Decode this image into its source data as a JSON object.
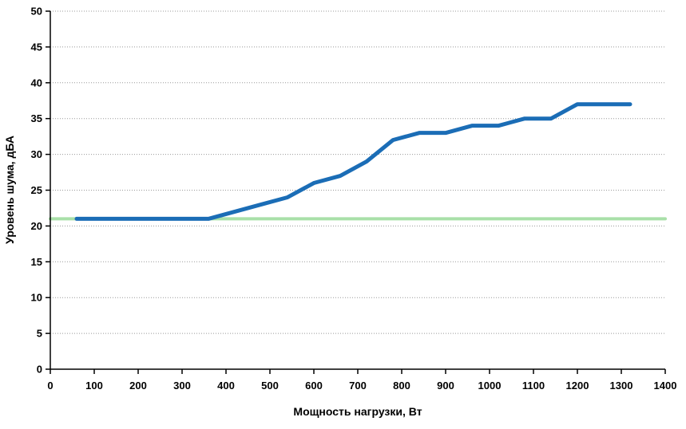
{
  "chart_data": {
    "type": "line",
    "title": "",
    "xlabel": "Мощность нагрузки, Вт",
    "ylabel": "Уровень шума, дБА",
    "xlim": [
      0,
      1400
    ],
    "ylim": [
      0,
      50
    ],
    "xticks": [
      0,
      100,
      200,
      300,
      400,
      500,
      600,
      700,
      800,
      900,
      1000,
      1100,
      1200,
      1300,
      1400
    ],
    "yticks": [
      0,
      5,
      10,
      15,
      20,
      25,
      30,
      35,
      40,
      45,
      50
    ],
    "grid": "horizontal-dotted",
    "legend": "none",
    "colors": {
      "axis": "#000000",
      "gridline": "#999999",
      "tick_label": "#000000",
      "background": "#ffffff"
    },
    "series": [
      {
        "name": "reference-line-21dba",
        "color": "#a9e0a9",
        "stroke_width": 4,
        "x": [
          0,
          1400
        ],
        "y": [
          21,
          21
        ]
      },
      {
        "name": "noise-curve",
        "color": "#1b6db6",
        "stroke_width": 5,
        "x": [
          60,
          120,
          180,
          240,
          300,
          360,
          420,
          480,
          540,
          600,
          660,
          720,
          780,
          840,
          900,
          960,
          1020,
          1080,
          1140,
          1200,
          1260,
          1320
        ],
        "y": [
          21,
          21,
          21,
          21,
          21,
          21,
          22,
          23,
          24,
          26,
          27,
          29,
          32,
          33,
          33,
          34,
          34,
          35,
          35,
          37,
          37,
          37
        ]
      }
    ]
  }
}
